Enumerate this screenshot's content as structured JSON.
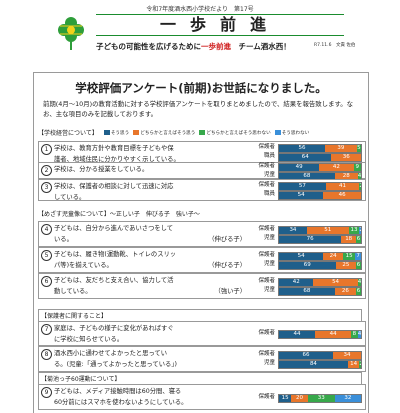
{
  "header": {
    "subline": "令和7年度酒水西小学校だより　第17号",
    "title": "一歩前進",
    "tagline_pre": "子どもの可能性を広げるために",
    "tagline_red": "一歩前進",
    "tagline_post": "チーム酒水西！",
    "date_author": "R7.11.6　文責 佐伯"
  },
  "headline": "学校評価アンケート(前期)お世話になりました。",
  "intro": "前期(4月〜10月)の教育活動に対する学校評価アンケートを取りまとめましたので、結果を報告致します。なお、主な項目のみを記載しております。",
  "legend": {
    "section": "【学校経営について】",
    "items": [
      "そう思う",
      "どちらかと言えばそう思う",
      "どちらかと言えばそう思わない",
      "そう思わない"
    ]
  },
  "colors": {
    "s1": "#1f5f8b",
    "s2": "#e8762b",
    "s3": "#37a84b",
    "s4": "#3a8fd9"
  },
  "sections": [
    "【めざす児童像について】〜正しい子　伸びる子　強い子〜",
    "【保護者に関すること】",
    "【菊池っ子60運動について】"
  ],
  "items": [
    {
      "num": "①",
      "lines": [
        "学校は、教育方針や教育目標を子どもや保",
        "護者、地域住民に分かりやすく示している。"
      ],
      "who": "",
      "rows": [
        {
          "label": "保護者",
          "segs": [
            56,
            39,
            5,
            0
          ]
        },
        {
          "label": "職員",
          "segs": [
            64,
            36,
            0,
            0
          ]
        }
      ]
    },
    {
      "num": "②",
      "lines": [
        "学校は、分かる授業をしている。"
      ],
      "who": "",
      "rows": [
        {
          "label": "保護者",
          "segs": [
            49,
            42,
            9,
            0
          ]
        },
        {
          "label": "児童",
          "segs": [
            68,
            28,
            4,
            0
          ]
        }
      ]
    },
    {
      "num": "③",
      "lines": [
        "学校は、保護者の相談に対して迅速に対応",
        "している。"
      ],
      "who": "",
      "rows": [
        {
          "label": "保護者",
          "segs": [
            57,
            41,
            2,
            0
          ]
        },
        {
          "label": "職員",
          "segs": [
            54,
            46,
            0,
            0
          ]
        }
      ]
    },
    {
      "num": "④",
      "lines": [
        "子どもは、自分から進んであいさつをして",
        "いる。"
      ],
      "who": "（伸びる子）",
      "rows": [
        {
          "label": "保護者",
          "segs": [
            34,
            51,
            13,
            2
          ]
        },
        {
          "label": "児童",
          "segs": [
            76,
            18,
            6,
            0
          ]
        }
      ]
    },
    {
      "num": "⑤",
      "lines": [
        "子どもは、履き物(運動靴、トイレのスリッ",
        "パ等)を揃えている。"
      ],
      "who": "（伸びる子）",
      "rows": [
        {
          "label": "保護者",
          "segs": [
            54,
            24,
            15,
            7
          ]
        },
        {
          "label": "児童",
          "segs": [
            69,
            25,
            6,
            0
          ]
        }
      ]
    },
    {
      "num": "⑥",
      "lines": [
        "子どもは、友だちと支え合い、協力して活",
        "動している。"
      ],
      "who": "（強い子）",
      "rows": [
        {
          "label": "保護者",
          "segs": [
            42,
            54,
            4,
            0
          ]
        },
        {
          "label": "児童",
          "segs": [
            68,
            26,
            6,
            0
          ]
        }
      ]
    },
    {
      "num": "⑦",
      "lines": [
        "家庭は、子どもの様子に変化があればすぐ",
        "に学校に知らせている。"
      ],
      "who": "",
      "rows": [
        {
          "label": "保護者",
          "segs": [
            44,
            44,
            8,
            4
          ]
        }
      ]
    },
    {
      "num": "⑧",
      "lines": [
        "酒水西小に通わせてよかったと思ってい",
        "る。(児童:「通ってよかったと思っている」)"
      ],
      "who": "",
      "rows": [
        {
          "label": "保護者",
          "segs": [
            66,
            34,
            0,
            0
          ]
        },
        {
          "label": "児童",
          "segs": [
            84,
            14,
            2,
            0
          ]
        }
      ]
    },
    {
      "num": "⑨",
      "lines": [
        "子どもは、メディア接触時間は60分間、寝る",
        "60分前にはスマホを使わないようにしている。"
      ],
      "who": "",
      "rows": [
        {
          "label": "保護者",
          "segs": [
            15,
            20,
            33,
            32
          ]
        }
      ]
    }
  ]
}
